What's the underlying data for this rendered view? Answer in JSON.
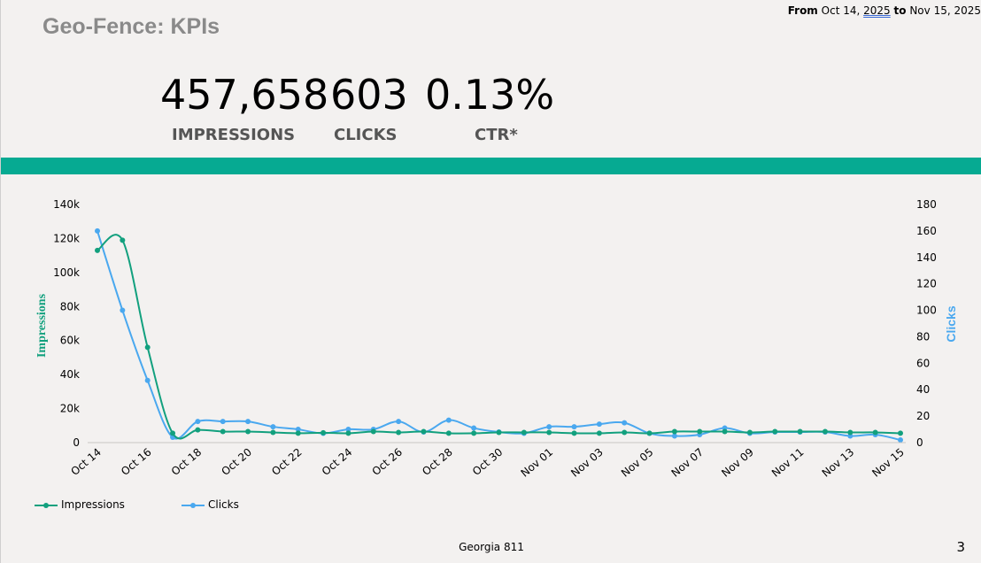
{
  "header": {
    "title": "Geo-Fence: KPIs",
    "date_from_label": "From",
    "date_from": "Oct 14,",
    "date_from_year": "2025",
    "date_to_label": "to",
    "date_to": "Nov 15, 2025"
  },
  "kpis": {
    "impressions_value": "457,658",
    "impressions_label": "IMPRESSIONS",
    "clicks_value": "603",
    "clicks_label": "CLICKS",
    "ctr_value": "0.13%",
    "ctr_label": "CTR*"
  },
  "colors": {
    "band": "#06aa92",
    "impressions": "#12a07e",
    "clicks": "#4aa8ef"
  },
  "chart_data": {
    "type": "line",
    "title": "",
    "xlabel": "",
    "ylabel_left": "Impressions",
    "ylabel_right": "Clicks",
    "ylim_left": [
      0,
      140000
    ],
    "ylim_right": [
      0,
      180
    ],
    "yticks_left": [
      "0",
      "20k",
      "40k",
      "60k",
      "80k",
      "100k",
      "120k",
      "140k"
    ],
    "yticks_right": [
      "0",
      "20",
      "40",
      "60",
      "80",
      "100",
      "120",
      "140",
      "160",
      "180"
    ],
    "x_tick_labels": [
      "Oct 14",
      "Oct 16",
      "Oct 18",
      "Oct 20",
      "Oct 22",
      "Oct 24",
      "Oct 26",
      "Oct 28",
      "Oct 30",
      "Nov 01",
      "Nov 03",
      "Nov 05",
      "Nov 07",
      "Nov 09",
      "Nov 11",
      "Nov 13",
      "Nov 15"
    ],
    "x": [
      "Oct 14",
      "Oct 15",
      "Oct 16",
      "Oct 17",
      "Oct 18",
      "Oct 19",
      "Oct 20",
      "Oct 21",
      "Oct 22",
      "Oct 23",
      "Oct 24",
      "Oct 25",
      "Oct 26",
      "Oct 27",
      "Oct 28",
      "Oct 29",
      "Oct 30",
      "Oct 31",
      "Nov 01",
      "Nov 02",
      "Nov 03",
      "Nov 04",
      "Nov 05",
      "Nov 06",
      "Nov 07",
      "Nov 08",
      "Nov 09",
      "Nov 10",
      "Nov 11",
      "Nov 12",
      "Nov 13",
      "Nov 14",
      "Nov 15"
    ],
    "series": [
      {
        "name": "Impressions",
        "axis": "left",
        "values": [
          113000,
          119000,
          56000,
          5500,
          7500,
          6500,
          6500,
          6000,
          5500,
          5800,
          5500,
          6500,
          6000,
          6500,
          5500,
          5500,
          6000,
          6000,
          6000,
          5500,
          5500,
          6000,
          5500,
          6500,
          6500,
          6500,
          6000,
          6500,
          6500,
          6500,
          6000,
          6000,
          5500
        ]
      },
      {
        "name": "Clicks",
        "axis": "right",
        "values": [
          160,
          100,
          47,
          4,
          16,
          16,
          16,
          12,
          10,
          7,
          10,
          10,
          16,
          8,
          17,
          11,
          8,
          7,
          12,
          12,
          14,
          15,
          7,
          5,
          6,
          11,
          7,
          8,
          8,
          8,
          5,
          6,
          2
        ]
      }
    ],
    "legend": [
      "Impressions",
      "Clicks"
    ],
    "legend_position": "bottom-left"
  },
  "footer": {
    "org": "Georgia 811",
    "page": "3"
  }
}
